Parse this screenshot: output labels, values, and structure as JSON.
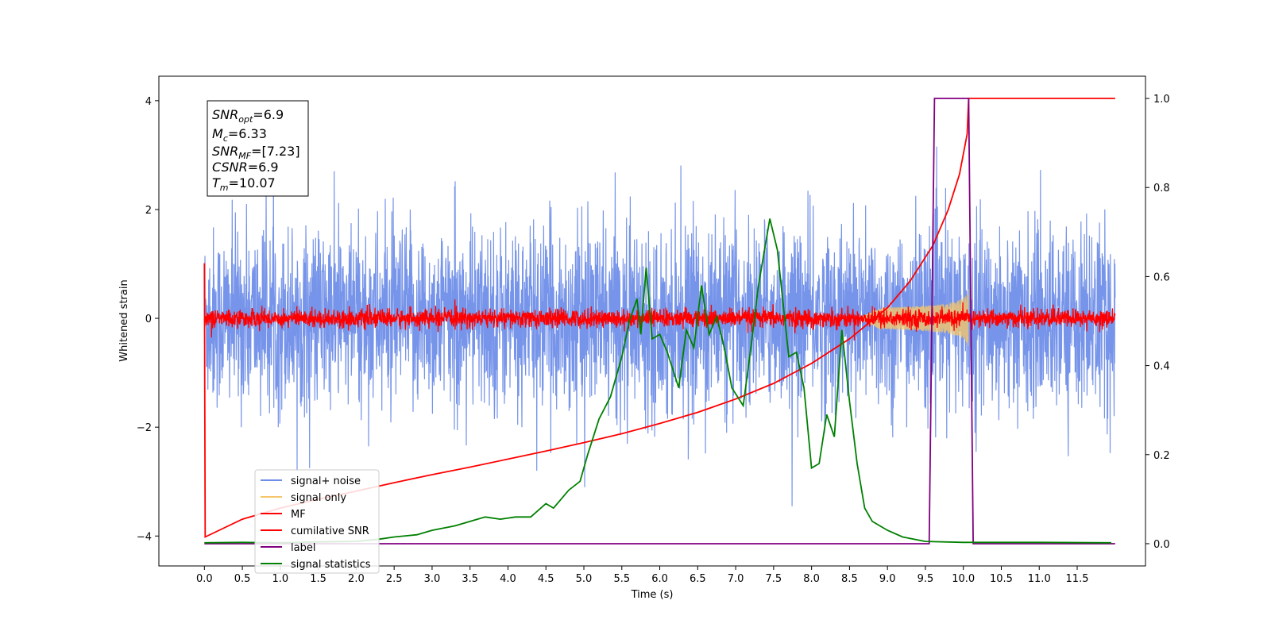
{
  "chart_data": {
    "type": "line",
    "xlabel": "Time (s)",
    "ylabel": "Whitened strain",
    "xlim": [
      -0.6,
      12.4
    ],
    "ylim": [
      -4.55,
      4.45
    ],
    "y2lim": [
      -0.05,
      1.05
    ],
    "x_ticks": [
      "0.0",
      "0.5",
      "1.0",
      "1.5",
      "2.0",
      "2.5",
      "3.0",
      "3.5",
      "4.0",
      "4.5",
      "5.0",
      "5.5",
      "6.0",
      "6.5",
      "7.0",
      "7.5",
      "8.0",
      "8.5",
      "9.0",
      "9.5",
      "10.0",
      "10.5",
      "11.0",
      "11.5"
    ],
    "y_ticks": [
      "4",
      "2",
      "0",
      "−2",
      "−4"
    ],
    "y2_ticks": [
      "1.0",
      "0.8",
      "0.6",
      "0.4",
      "0.2",
      "0.0"
    ],
    "grid": false,
    "legend_position": "lower-left",
    "annotation": {
      "snr_opt": {
        "base": "SNR",
        "sub": "opt",
        "value": "=6.9"
      },
      "mc": {
        "base": "M",
        "sub": "c",
        "value": "=6.33"
      },
      "snr_mf": {
        "base": "SNR",
        "sub": "MF",
        "value": "=[7.23]"
      },
      "csnr": {
        "base": "CSNR",
        "value": "=6.9"
      },
      "tm": {
        "base": "T",
        "sub": "m",
        "value": "=10.07"
      }
    },
    "series": [
      {
        "name": "signal+ noise",
        "axis": "left",
        "color": "#6f8ee8",
        "style": "noise",
        "amplitude": 1.5,
        "x_range": [
          0,
          12.0
        ]
      },
      {
        "name": "signal only",
        "axis": "left",
        "color": "#f5c56a",
        "style": "chirp",
        "x_range": [
          8.6,
          10.07
        ],
        "peak": 0.55
      },
      {
        "name": "MF",
        "axis": "left",
        "color": "#ff0000",
        "style": "noise",
        "amplitude": 0.15,
        "x_range": [
          0,
          12.0
        ]
      },
      {
        "name": "cumilative SNR",
        "axis": "right",
        "color": "#ff0000",
        "style": "line",
        "x": [
          0.0,
          0.01,
          0.5,
          1.0,
          1.5,
          2.0,
          2.5,
          3.0,
          3.5,
          4.0,
          4.5,
          5.0,
          5.5,
          6.0,
          6.5,
          7.0,
          7.5,
          8.0,
          8.5,
          9.0,
          9.3,
          9.6,
          9.8,
          9.95,
          10.05,
          10.07,
          12.0
        ],
        "y": [
          0.63,
          0.015,
          0.055,
          0.08,
          0.1,
          0.118,
          0.137,
          0.155,
          0.172,
          0.19,
          0.208,
          0.227,
          0.247,
          0.27,
          0.295,
          0.325,
          0.36,
          0.405,
          0.46,
          0.53,
          0.59,
          0.67,
          0.75,
          0.83,
          0.92,
          1.0,
          1.0
        ]
      },
      {
        "name": "label",
        "axis": "right",
        "color": "#800080",
        "style": "line",
        "x": [
          0.0,
          9.55,
          9.62,
          10.07,
          10.13,
          12.0
        ],
        "y": [
          0.0,
          0.0,
          1.0,
          1.0,
          0.0,
          0.0
        ]
      },
      {
        "name": "signal statistics",
        "axis": "right",
        "color": "#008000",
        "style": "line",
        "x": [
          0.0,
          0.5,
          1.0,
          1.5,
          2.0,
          2.3,
          2.5,
          2.8,
          3.0,
          3.3,
          3.5,
          3.7,
          3.9,
          4.1,
          4.3,
          4.5,
          4.6,
          4.8,
          4.95,
          5.05,
          5.2,
          5.35,
          5.5,
          5.6,
          5.7,
          5.75,
          5.82,
          5.9,
          6.0,
          6.1,
          6.25,
          6.35,
          6.45,
          6.55,
          6.65,
          6.75,
          6.85,
          6.95,
          7.1,
          7.2,
          7.3,
          7.45,
          7.55,
          7.7,
          7.8,
          7.9,
          8.0,
          8.1,
          8.2,
          8.3,
          8.4,
          8.5,
          8.6,
          8.7,
          8.8,
          9.0,
          9.2,
          9.5,
          10.0,
          11.0,
          11.95
        ],
        "y": [
          0.002,
          0.003,
          0.002,
          0.004,
          0.005,
          0.01,
          0.015,
          0.02,
          0.03,
          0.04,
          0.05,
          0.06,
          0.055,
          0.06,
          0.06,
          0.09,
          0.08,
          0.12,
          0.14,
          0.2,
          0.28,
          0.33,
          0.42,
          0.5,
          0.55,
          0.47,
          0.62,
          0.46,
          0.47,
          0.43,
          0.35,
          0.48,
          0.44,
          0.58,
          0.47,
          0.51,
          0.44,
          0.35,
          0.31,
          0.44,
          0.58,
          0.73,
          0.66,
          0.42,
          0.43,
          0.35,
          0.17,
          0.18,
          0.29,
          0.24,
          0.48,
          0.32,
          0.18,
          0.08,
          0.05,
          0.03,
          0.015,
          0.005,
          0.003,
          0.003,
          0.002
        ]
      }
    ]
  }
}
